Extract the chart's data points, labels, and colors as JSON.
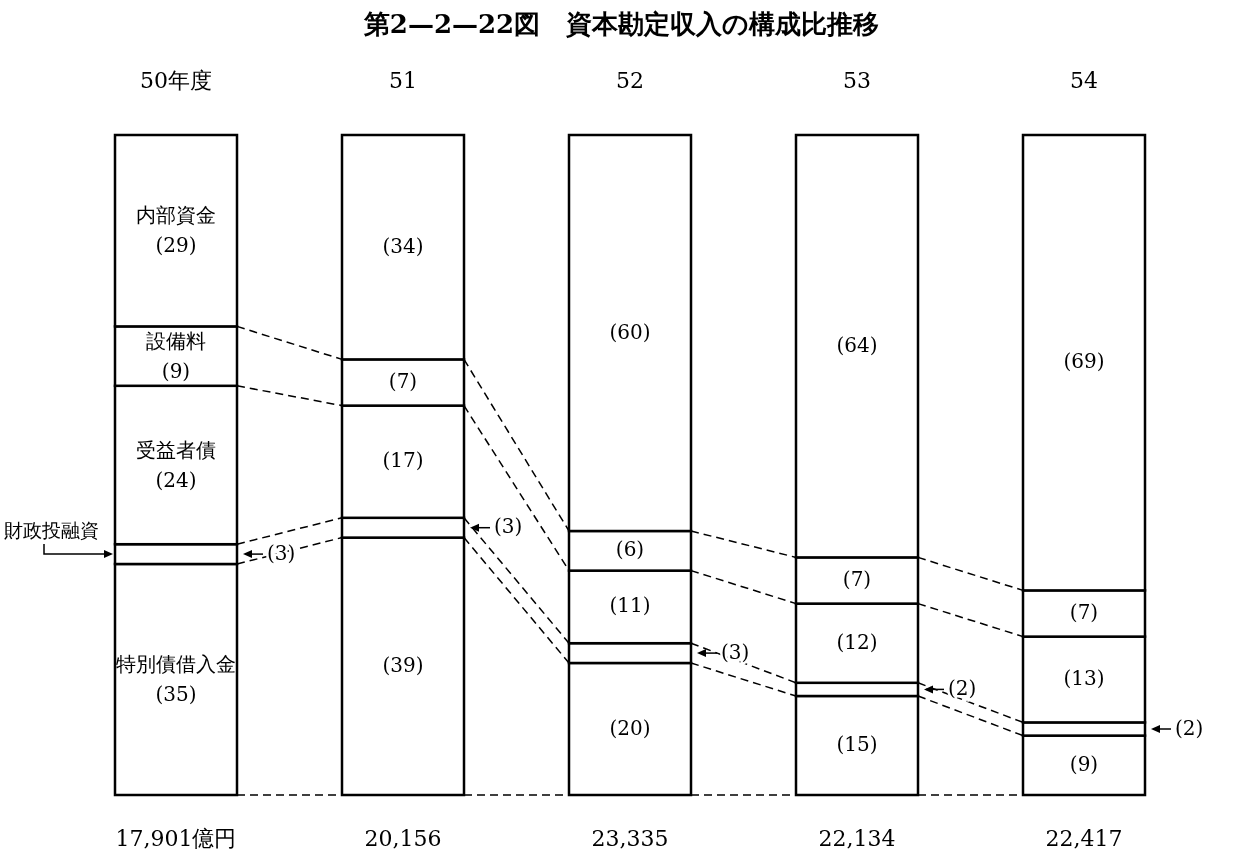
{
  "chart_data": {
    "type": "bar",
    "stacked": true,
    "title": "第2—2—22図　資本勘定収入の構成比推移",
    "categories": [
      "50年度",
      "51",
      "52",
      "53",
      "54"
    ],
    "series": [
      {
        "name": "特別債借入金",
        "color": "#ffffff",
        "values": [
          35,
          39,
          20,
          15,
          9
        ],
        "value_labels": [
          "(35)",
          "(39)",
          "(20)",
          "(15)",
          "(9)"
        ]
      },
      {
        "name": "財政投融資",
        "color": "#ffffff",
        "values": [
          3,
          3,
          3,
          2,
          2
        ],
        "value_labels": [
          "(3)",
          "(3)",
          "(3)",
          "(2)",
          "(2)"
        ]
      },
      {
        "name": "受益者債",
        "color": "#ffffff",
        "values": [
          24,
          17,
          11,
          12,
          13
        ],
        "value_labels": [
          "(24)",
          "(17)",
          "(11)",
          "(12)",
          "(13)"
        ]
      },
      {
        "name": "設備料",
        "color": "#ffffff",
        "values": [
          9,
          7,
          6,
          7,
          7
        ],
        "value_labels": [
          "(9)",
          "(7)",
          "(6)",
          "(7)",
          "(7)"
        ]
      },
      {
        "name": "内部資金",
        "color": "#ffffff",
        "values": [
          29,
          34,
          60,
          64,
          69
        ],
        "value_labels": [
          "(29)",
          "(34)",
          "(60)",
          "(64)",
          "(69)"
        ]
      }
    ],
    "annotations": [
      "17,901億円",
      "20,156",
      "23,335",
      "22,134",
      "22,417"
    ]
  }
}
